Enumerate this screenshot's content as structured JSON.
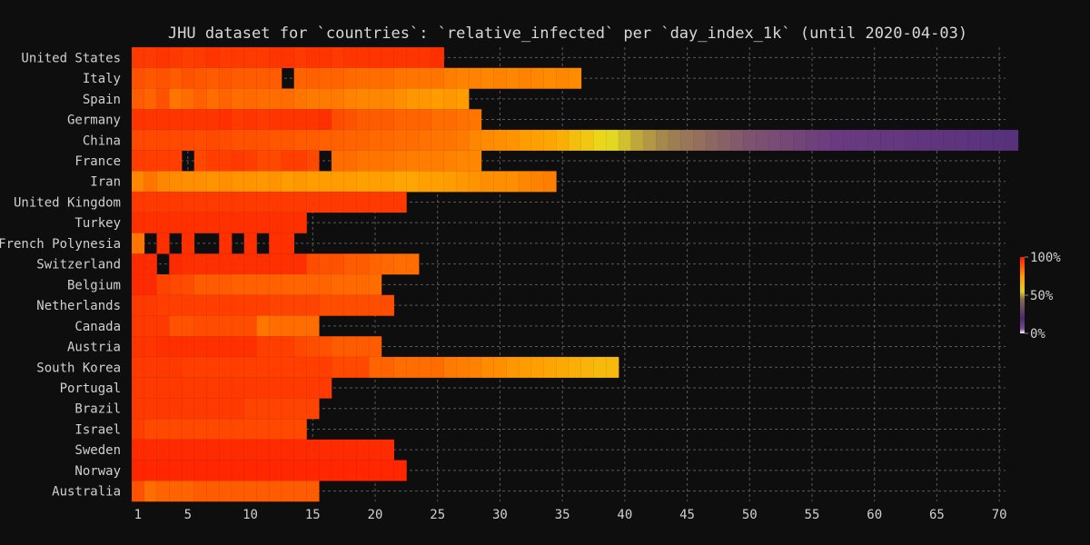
{
  "chart_data": {
    "type": "heatmap",
    "title": "JHU dataset for `countries`: `relative_infected` per `day_index_1k` (until 2020-04-03)",
    "xlabel": "",
    "ylabel": "",
    "x_range": [
      1,
      70
    ],
    "x_ticks": [
      "1",
      "5",
      "10",
      "15",
      "20",
      "25",
      "30",
      "35",
      "40",
      "45",
      "50",
      "55",
      "60",
      "65",
      "70"
    ],
    "grid": true,
    "colorbar": {
      "ticks": [
        "0%",
        "50%",
        "100%"
      ],
      "placement": "right",
      "colors": [
        "#ffffff",
        "#5a2a7a",
        "#e8e020",
        "#ff7a00",
        "#ff2000"
      ]
    },
    "countries": [
      {
        "name": "United States",
        "days": 25,
        "missing": [],
        "rel": [
          0.93,
          0.93,
          0.94,
          0.93,
          0.92,
          0.93,
          0.94,
          0.93,
          0.93,
          0.93,
          0.93,
          0.94,
          0.94,
          0.93,
          0.94,
          0.94,
          0.93,
          0.94,
          0.94,
          0.94,
          0.94,
          0.94,
          0.94,
          0.94,
          0.95
        ]
      },
      {
        "name": "Italy",
        "days": 36,
        "missing": [
          13
        ],
        "rel": [
          0.88,
          0.87,
          0.88,
          0.86,
          0.88,
          0.87,
          0.86,
          0.87,
          0.86,
          0.86,
          0.86,
          0.86,
          0.85,
          0.84,
          0.85,
          0.84,
          0.84,
          0.83,
          0.82,
          0.82,
          0.82,
          0.8,
          0.8,
          0.8,
          0.8,
          0.78,
          0.77,
          0.77,
          0.76,
          0.77,
          0.76,
          0.77,
          0.76,
          0.75,
          0.76,
          0.75
        ]
      },
      {
        "name": "Spain",
        "days": 27,
        "missing": [],
        "rel": [
          0.86,
          0.84,
          0.88,
          0.8,
          0.82,
          0.85,
          0.82,
          0.84,
          0.82,
          0.83,
          0.82,
          0.82,
          0.82,
          0.8,
          0.79,
          0.79,
          0.79,
          0.77,
          0.76,
          0.76,
          0.76,
          0.74,
          0.72,
          0.72,
          0.71,
          0.72,
          0.71
        ]
      },
      {
        "name": "Germany",
        "days": 28,
        "missing": [],
        "rel": [
          0.94,
          0.94,
          0.94,
          0.94,
          0.94,
          0.94,
          0.94,
          0.95,
          0.93,
          0.94,
          0.93,
          0.94,
          0.94,
          0.94,
          0.94,
          0.95,
          0.89,
          0.88,
          0.86,
          0.86,
          0.86,
          0.84,
          0.84,
          0.84,
          0.82,
          0.82,
          0.81,
          0.8
        ]
      },
      {
        "name": "China",
        "days": 71,
        "missing": [],
        "rel": [
          0.9,
          0.9,
          0.9,
          0.9,
          0.9,
          0.89,
          0.9,
          0.89,
          0.88,
          0.88,
          0.88,
          0.87,
          0.87,
          0.86,
          0.86,
          0.85,
          0.85,
          0.84,
          0.84,
          0.83,
          0.83,
          0.82,
          0.82,
          0.81,
          0.8,
          0.8,
          0.79,
          0.76,
          0.75,
          0.74,
          0.73,
          0.71,
          0.7,
          0.69,
          0.67,
          0.64,
          0.62,
          0.59,
          0.56,
          0.53,
          0.5,
          0.48,
          0.46,
          0.44,
          0.42,
          0.4,
          0.38,
          0.36,
          0.34,
          0.32,
          0.31,
          0.3,
          0.29,
          0.28,
          0.27,
          0.26,
          0.25,
          0.24,
          0.23,
          0.22,
          0.21,
          0.2,
          0.19,
          0.18,
          0.17,
          0.16,
          0.15,
          0.14,
          0.13,
          0.12,
          0.11
        ]
      },
      {
        "name": "France",
        "days": 28,
        "missing": [
          5,
          16
        ],
        "rel": [
          0.92,
          0.92,
          0.92,
          0.92,
          0.92,
          0.9,
          0.92,
          0.92,
          0.93,
          0.92,
          0.9,
          0.9,
          0.92,
          0.92,
          0.9,
          0.88,
          0.82,
          0.82,
          0.8,
          0.8,
          0.8,
          0.79,
          0.78,
          0.78,
          0.78,
          0.77,
          0.76,
          0.76
        ]
      },
      {
        "name": "Iran",
        "days": 34,
        "missing": [],
        "rel": [
          0.76,
          0.8,
          0.76,
          0.75,
          0.74,
          0.74,
          0.73,
          0.74,
          0.73,
          0.73,
          0.72,
          0.73,
          0.71,
          0.72,
          0.71,
          0.71,
          0.71,
          0.71,
          0.7,
          0.7,
          0.7,
          0.69,
          0.69,
          0.7,
          0.7,
          0.71,
          0.72,
          0.73,
          0.74,
          0.74,
          0.74,
          0.76,
          0.77,
          0.78
        ]
      },
      {
        "name": "United Kingdom",
        "days": 22,
        "missing": [],
        "rel": [
          0.93,
          0.93,
          0.93,
          0.93,
          0.93,
          0.93,
          0.93,
          0.93,
          0.93,
          0.93,
          0.93,
          0.93,
          0.93,
          0.93,
          0.93,
          0.93,
          0.93,
          0.93,
          0.93,
          0.93,
          0.93,
          0.93
        ]
      },
      {
        "name": "Turkey",
        "days": 14,
        "missing": [],
        "rel": [
          0.95,
          0.95,
          0.95,
          0.95,
          0.95,
          0.95,
          0.95,
          0.95,
          0.95,
          0.95,
          0.95,
          0.95,
          0.95,
          0.95
        ]
      },
      {
        "name": "French Polynesia",
        "days": 13,
        "missing": [
          2,
          4,
          6,
          7,
          9,
          11
        ],
        "rel": [
          0.8,
          0.95,
          0.95,
          0.95,
          0.95,
          0.95,
          0.95,
          0.95,
          0.95,
          0.95,
          0.95,
          0.95,
          0.95
        ]
      },
      {
        "name": "Switzerland",
        "days": 23,
        "missing": [
          3
        ],
        "rel": [
          0.96,
          0.96,
          0.96,
          0.96,
          0.95,
          0.95,
          0.95,
          0.95,
          0.95,
          0.95,
          0.95,
          0.95,
          0.95,
          0.95,
          0.89,
          0.88,
          0.88,
          0.86,
          0.86,
          0.84,
          0.83,
          0.82,
          0.82
        ]
      },
      {
        "name": "Belgium",
        "days": 20,
        "missing": [],
        "rel": [
          0.96,
          0.96,
          0.91,
          0.9,
          0.89,
          0.86,
          0.86,
          0.86,
          0.85,
          0.85,
          0.85,
          0.85,
          0.84,
          0.84,
          0.84,
          0.84,
          0.83,
          0.83,
          0.83,
          0.82
        ]
      },
      {
        "name": "Netherlands",
        "days": 21,
        "missing": [],
        "rel": [
          0.93,
          0.93,
          0.92,
          0.92,
          0.92,
          0.92,
          0.92,
          0.92,
          0.92,
          0.92,
          0.92,
          0.91,
          0.91,
          0.91,
          0.91,
          0.89,
          0.89,
          0.89,
          0.89,
          0.89,
          0.89
        ]
      },
      {
        "name": "Canada",
        "days": 15,
        "missing": [],
        "rel": [
          0.93,
          0.93,
          0.93,
          0.88,
          0.88,
          0.89,
          0.89,
          0.89,
          0.89,
          0.89,
          0.8,
          0.82,
          0.82,
          0.82,
          0.82
        ]
      },
      {
        "name": "Austria",
        "days": 20,
        "missing": [],
        "rel": [
          0.94,
          0.94,
          0.95,
          0.95,
          0.95,
          0.95,
          0.95,
          0.95,
          0.95,
          0.95,
          0.92,
          0.92,
          0.92,
          0.9,
          0.89,
          0.88,
          0.86,
          0.86,
          0.86,
          0.86
        ]
      },
      {
        "name": "South Korea",
        "days": 39,
        "missing": [],
        "rel": [
          0.93,
          0.93,
          0.93,
          0.93,
          0.92,
          0.92,
          0.92,
          0.92,
          0.92,
          0.92,
          0.92,
          0.92,
          0.92,
          0.92,
          0.92,
          0.92,
          0.9,
          0.9,
          0.9,
          0.84,
          0.84,
          0.82,
          0.82,
          0.82,
          0.82,
          0.79,
          0.78,
          0.77,
          0.75,
          0.74,
          0.72,
          0.71,
          0.7,
          0.69,
          0.68,
          0.67,
          0.66,
          0.65,
          0.65
        ]
      },
      {
        "name": "Portugal",
        "days": 16,
        "missing": [],
        "rel": [
          0.93,
          0.93,
          0.93,
          0.93,
          0.93,
          0.93,
          0.93,
          0.93,
          0.93,
          0.93,
          0.93,
          0.93,
          0.93,
          0.93,
          0.93,
          0.93
        ]
      },
      {
        "name": "Brazil",
        "days": 15,
        "missing": [],
        "rel": [
          0.93,
          0.93,
          0.93,
          0.93,
          0.93,
          0.93,
          0.93,
          0.93,
          0.93,
          0.91,
          0.91,
          0.91,
          0.91,
          0.91,
          0.91
        ]
      },
      {
        "name": "Israel",
        "days": 14,
        "missing": [],
        "rel": [
          0.92,
          0.9,
          0.9,
          0.9,
          0.9,
          0.9,
          0.9,
          0.9,
          0.9,
          0.9,
          0.9,
          0.9,
          0.9,
          0.9
        ]
      },
      {
        "name": "Sweden",
        "days": 21,
        "missing": [],
        "rel": [
          0.96,
          0.96,
          0.96,
          0.96,
          0.96,
          0.96,
          0.96,
          0.96,
          0.96,
          0.96,
          0.96,
          0.96,
          0.96,
          0.96,
          0.96,
          0.96,
          0.96,
          0.96,
          0.96,
          0.96,
          0.96
        ]
      },
      {
        "name": "Norway",
        "days": 22,
        "missing": [],
        "rel": [
          0.97,
          0.97,
          0.97,
          0.97,
          0.97,
          0.97,
          0.97,
          0.97,
          0.97,
          0.97,
          0.97,
          0.97,
          0.97,
          0.97,
          0.97,
          0.97,
          0.97,
          0.97,
          0.97,
          0.97,
          0.97,
          0.97
        ]
      },
      {
        "name": "Australia",
        "days": 15,
        "missing": [],
        "rel": [
          0.88,
          0.82,
          0.84,
          0.84,
          0.84,
          0.86,
          0.86,
          0.86,
          0.86,
          0.86,
          0.86,
          0.86,
          0.86,
          0.86,
          0.86
        ]
      }
    ]
  }
}
